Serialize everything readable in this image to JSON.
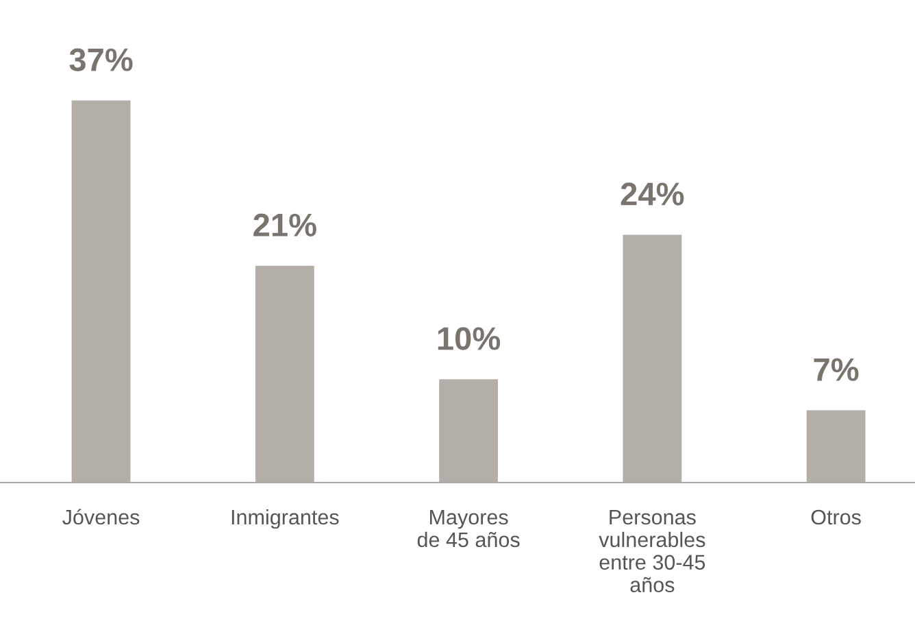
{
  "chart_data": {
    "type": "bar",
    "categories": [
      "Jóvenes",
      "Inmigrantes",
      "Mayores\nde 45 años",
      "Personas\nvulnerables\nentre 30-45\naños",
      "Otros"
    ],
    "values": [
      37,
      21,
      10,
      24,
      7
    ],
    "value_labels": [
      "37%",
      "21%",
      "10%",
      "24%",
      "7%"
    ],
    "color": "#b3aea8",
    "grid": false,
    "legend": false
  }
}
